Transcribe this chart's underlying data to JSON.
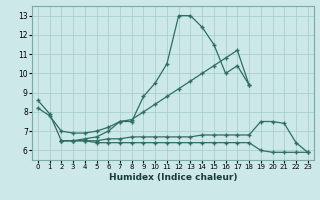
{
  "xlabel": "Humidex (Indice chaleur)",
  "xlim": [
    -0.5,
    23.5
  ],
  "ylim": [
    5.5,
    13.5
  ],
  "xticks": [
    0,
    1,
    2,
    3,
    4,
    5,
    6,
    7,
    8,
    9,
    10,
    11,
    12,
    13,
    14,
    15,
    16,
    17,
    18,
    19,
    20,
    21,
    22,
    23
  ],
  "yticks": [
    6,
    7,
    8,
    9,
    10,
    11,
    12,
    13
  ],
  "background_color": "#cce8e8",
  "line_color": "#2e6e65",
  "grid_color": "#aacece",
  "curves": [
    {
      "x": [
        0,
        1,
        2,
        3,
        4,
        5,
        6,
        7,
        8,
        9,
        10,
        11,
        12,
        13,
        14,
        15,
        16,
        17,
        18
      ],
      "y": [
        8.6,
        7.9,
        6.5,
        6.5,
        6.6,
        6.7,
        7.0,
        7.5,
        7.5,
        8.8,
        9.5,
        10.5,
        13.0,
        13.0,
        12.4,
        11.5,
        10.0,
        10.4,
        9.4
      ]
    },
    {
      "x": [
        0,
        1,
        2,
        3,
        4,
        5,
        6,
        7,
        8,
        9,
        10,
        11,
        12,
        13,
        14,
        15,
        16,
        17,
        18,
        19,
        20
      ],
      "y": [
        8.2,
        7.8,
        7.0,
        6.9,
        6.9,
        7.0,
        7.2,
        7.5,
        7.6,
        8.0,
        8.4,
        8.8,
        9.2,
        9.6,
        10.0,
        10.4,
        10.8,
        11.2,
        9.4,
        null,
        null
      ]
    },
    {
      "x": [
        2,
        3,
        4,
        5,
        6,
        7,
        8,
        9,
        10,
        11,
        12,
        13,
        14,
        15,
        16,
        17,
        18,
        19,
        20,
        21,
        22,
        23
      ],
      "y": [
        6.5,
        6.5,
        6.5,
        6.5,
        6.6,
        6.6,
        6.7,
        6.7,
        6.7,
        6.7,
        6.7,
        6.7,
        6.8,
        6.8,
        6.8,
        6.8,
        6.8,
        7.5,
        7.5,
        7.4,
        6.4,
        5.9
      ]
    },
    {
      "x": [
        2,
        3,
        4,
        5,
        6,
        7,
        8,
        9,
        10,
        11,
        12,
        13,
        14,
        15,
        16,
        17,
        18,
        19,
        20,
        21,
        22,
        23
      ],
      "y": [
        6.5,
        6.5,
        6.5,
        6.4,
        6.4,
        6.4,
        6.4,
        6.4,
        6.4,
        6.4,
        6.4,
        6.4,
        6.4,
        6.4,
        6.4,
        6.4,
        6.4,
        6.0,
        5.9,
        5.9,
        5.9,
        5.9
      ]
    }
  ]
}
